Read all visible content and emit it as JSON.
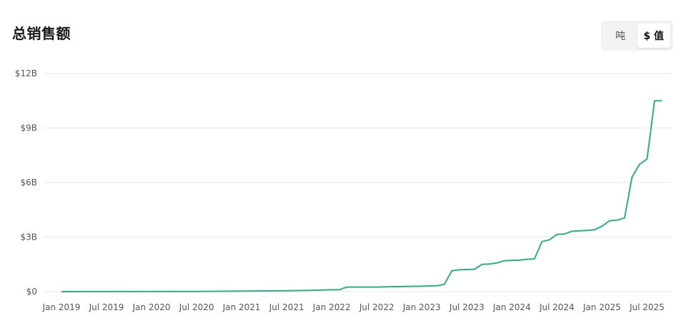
{
  "header": {
    "title": "总销售额"
  },
  "toggle": {
    "options": [
      {
        "label": "吨",
        "active": false
      },
      {
        "label": "$ 值",
        "active": true
      }
    ]
  },
  "colors": {
    "line": "#2bb07f",
    "grid": "#e8e8e8"
  },
  "chart_data": {
    "type": "line",
    "title": "总销售额",
    "xlabel": "",
    "ylabel": "",
    "ylim": [
      0,
      12000000000
    ],
    "grid": true,
    "legend": "none",
    "y_ticks": [
      {
        "value": 0,
        "label": "$0"
      },
      {
        "value": 3000000000,
        "label": "$3B"
      },
      {
        "value": 6000000000,
        "label": "$6B"
      },
      {
        "value": 9000000000,
        "label": "$9B"
      },
      {
        "value": 12000000000,
        "label": "$12B"
      }
    ],
    "x_ticks": [
      "Jan 2019",
      "Jul 2019",
      "Jan 2020",
      "Jul 2020",
      "Jan 2021",
      "Jul 2021",
      "Jan 2022",
      "Jul 2022",
      "Jan 2023",
      "Jul 2023",
      "Jan 2024",
      "Jul 2024",
      "Jan 2025",
      "Jul 2025"
    ],
    "x_range": [
      "2019-01",
      "2025-08"
    ],
    "series": [
      {
        "points": [
          {
            "x": "2019-01",
            "y": 0
          },
          {
            "x": "2020-07",
            "y": 10000000
          },
          {
            "x": "2021-01",
            "y": 30000000
          },
          {
            "x": "2021-07",
            "y": 50000000
          },
          {
            "x": "2021-10",
            "y": 70000000
          },
          {
            "x": "2022-01",
            "y": 100000000
          },
          {
            "x": "2022-02",
            "y": 100000000
          },
          {
            "x": "2022-03",
            "y": 250000000
          },
          {
            "x": "2022-07",
            "y": 250000000
          },
          {
            "x": "2022-10",
            "y": 280000000
          },
          {
            "x": "2023-01",
            "y": 300000000
          },
          {
            "x": "2023-03",
            "y": 320000000
          },
          {
            "x": "2023-04",
            "y": 400000000
          },
          {
            "x": "2023-05",
            "y": 1150000000
          },
          {
            "x": "2023-06",
            "y": 1200000000
          },
          {
            "x": "2023-08",
            "y": 1230000000
          },
          {
            "x": "2023-09",
            "y": 1500000000
          },
          {
            "x": "2023-10",
            "y": 1520000000
          },
          {
            "x": "2023-11",
            "y": 1580000000
          },
          {
            "x": "2023-12",
            "y": 1700000000
          },
          {
            "x": "2024-02",
            "y": 1730000000
          },
          {
            "x": "2024-03",
            "y": 1780000000
          },
          {
            "x": "2024-04",
            "y": 1800000000
          },
          {
            "x": "2024-05",
            "y": 2750000000
          },
          {
            "x": "2024-06",
            "y": 2850000000
          },
          {
            "x": "2024-07",
            "y": 3150000000
          },
          {
            "x": "2024-08",
            "y": 3170000000
          },
          {
            "x": "2024-09",
            "y": 3320000000
          },
          {
            "x": "2024-11",
            "y": 3360000000
          },
          {
            "x": "2024-12",
            "y": 3400000000
          },
          {
            "x": "2025-01",
            "y": 3600000000
          },
          {
            "x": "2025-02",
            "y": 3900000000
          },
          {
            "x": "2025-03",
            "y": 3930000000
          },
          {
            "x": "2025-04",
            "y": 4050000000
          },
          {
            "x": "2025-05",
            "y": 6300000000
          },
          {
            "x": "2025-06",
            "y": 7000000000
          },
          {
            "x": "2025-07",
            "y": 7300000000
          },
          {
            "x": "2025-08",
            "y": 10500000000
          },
          {
            "x": "2025-09",
            "y": 10500000000
          }
        ]
      }
    ]
  }
}
